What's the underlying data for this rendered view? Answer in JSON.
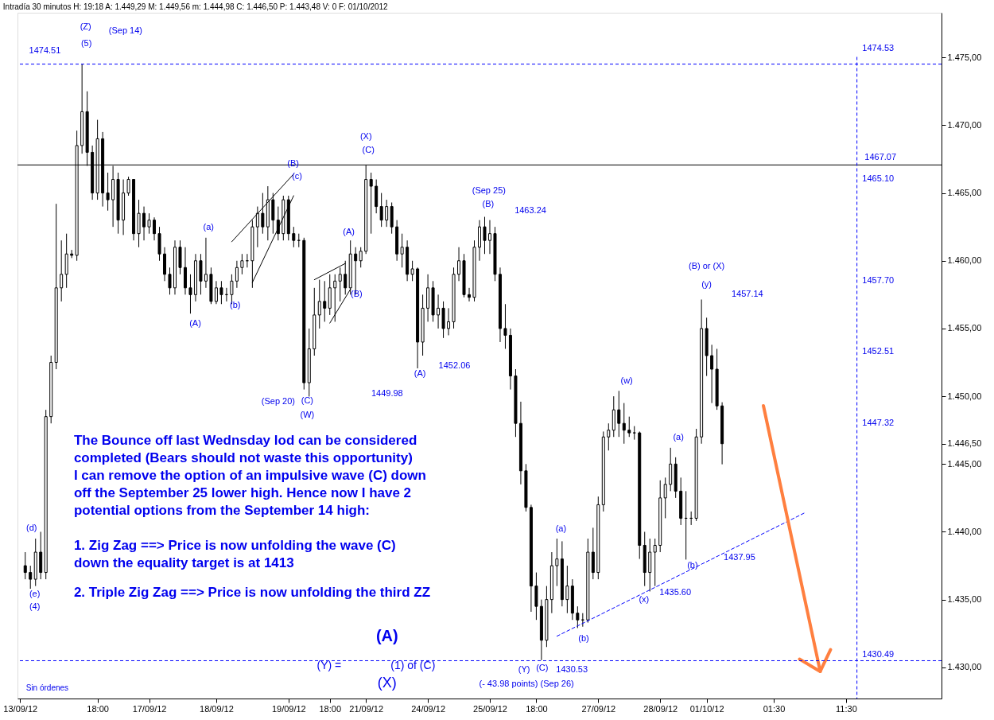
{
  "chart_data": {
    "type": "candlestick",
    "title": "Intradía 30 minutos H: 19:18 A: 1.449,29 M: 1.449,56 m: 1.444,98 C: 1.446,50 P: 1.443,48 V: 0 F: 01/10/2012",
    "categories": [
      "13/09/12",
      null,
      null,
      null,
      null,
      null,
      null,
      null,
      null,
      null,
      null,
      null,
      null,
      null,
      null,
      "18:00",
      null,
      null,
      null,
      null,
      null,
      null,
      null,
      null,
      null,
      "17/09/12",
      null,
      null,
      null,
      null,
      null,
      null,
      null,
      null,
      null,
      null,
      null,
      null,
      "18/09/12",
      null,
      null,
      null,
      null,
      null,
      null,
      null,
      null,
      null,
      null,
      null,
      null,
      null,
      "19/09/12",
      null,
      null,
      null,
      null,
      null,
      null,
      null,
      "18:00",
      null,
      null,
      null,
      null,
      null,
      null,
      "21/09/12",
      null,
      null,
      null,
      null,
      null,
      null,
      null,
      null,
      null,
      null,
      null,
      "24/09/12",
      null,
      null,
      null,
      null,
      null,
      null,
      null,
      null,
      null,
      null,
      null,
      "25/09/12",
      null,
      null,
      null,
      null,
      null,
      null,
      null,
      null,
      "18:00",
      null,
      null,
      null,
      null,
      null,
      null,
      null,
      null,
      null,
      null,
      null,
      "27/09/12",
      null,
      null,
      null,
      null,
      null,
      null,
      null,
      null,
      null,
      null,
      null,
      "28/09/12",
      null,
      null,
      null,
      null,
      null,
      null,
      null,
      null,
      "01/10/12",
      null,
      null,
      null,
      null,
      null,
      null,
      null,
      null,
      null,
      null,
      null,
      null,
      "01:30",
      null,
      null,
      null,
      null,
      null,
      null,
      null,
      null,
      null,
      null,
      null,
      null,
      null,
      "11:30",
      null,
      null,
      null,
      null,
      null,
      null,
      null,
      null,
      null,
      null,
      null,
      null,
      null,
      null,
      null,
      null,
      null,
      null
    ],
    "ohlc": [
      null,
      [
        1437.5,
        1438.5,
        1436.5,
        1437.0
      ],
      [
        1437.0,
        1437.5,
        1435.8,
        1436.5
      ],
      [
        1436.5,
        1439.5,
        1436.0,
        1438.5
      ],
      [
        1438.5,
        1440.0,
        1436.5,
        1437.0
      ],
      [
        1437.0,
        1449.0,
        1436.5,
        1448.5
      ],
      [
        1448.5,
        1453.0,
        1448.0,
        1452.5
      ],
      [
        1452.5,
        1464.2,
        1452.0,
        1458.0
      ],
      [
        1458.0,
        1461.5,
        1457.0,
        1459.0
      ],
      [
        1459.0,
        1462.0,
        1458.0,
        1460.5
      ],
      [
        1460.5,
        1460.8,
        1460.2,
        1460.4
      ],
      [
        1460.4,
        1469.6,
        1460.0,
        1468.5
      ],
      [
        1468.5,
        1474.51,
        1467.9,
        1471.0
      ],
      [
        1471.0,
        1472.5,
        1467.0,
        1468.0
      ],
      [
        1468.0,
        1468.5,
        1464.5,
        1465.0
      ],
      [
        1465.0,
        1470.4,
        1464.5,
        1469.0
      ],
      [
        1469.0,
        1469.5,
        1464.0,
        1465.0
      ],
      [
        1465.0,
        1466.5,
        1463.7,
        1464.5
      ],
      [
        1464.5,
        1467.0,
        1462.5,
        1466.0
      ],
      [
        1466.0,
        1466.5,
        1462.0,
        1463.0
      ],
      [
        1463.0,
        1466.0,
        1461.9,
        1465.0
      ],
      [
        1465.0,
        1466.2,
        1464.8,
        1466.0
      ],
      [
        1466.0,
        1466.0,
        1461.5,
        1462.0
      ],
      [
        1462.0,
        1464.5,
        1461.0,
        1463.5
      ],
      [
        1463.5,
        1464.0,
        1461.5,
        1462.5
      ],
      [
        1462.5,
        1463.5,
        1462.0,
        1463.0
      ],
      [
        1463.0,
        1463.2,
        1461.5,
        1462.0
      ],
      [
        1462.0,
        1462.5,
        1460.0,
        1460.5
      ],
      [
        1460.5,
        1461.0,
        1458.5,
        1459.0
      ],
      [
        1459.0,
        1459.5,
        1457.5,
        1458.0
      ],
      [
        1458.0,
        1461.5,
        1457.5,
        1461.0
      ],
      [
        1461.0,
        1461.5,
        1459.0,
        1459.5
      ],
      [
        1459.5,
        1461.0,
        1457.5,
        1458.0
      ],
      [
        1458.0,
        1459.0,
        1456.1,
        1457.5
      ],
      [
        1457.5,
        1460.5,
        1457.0,
        1460.0
      ],
      [
        1460.0,
        1460.5,
        1457.5,
        1458.5
      ],
      [
        1458.5,
        1461.7,
        1458.0,
        1459.0
      ],
      [
        1459.0,
        1459.5,
        1456.8,
        1457.0
      ],
      [
        1457.0,
        1458.5,
        1456.8,
        1458.0
      ],
      [
        1458.0,
        1458.5,
        1456.8,
        1457.5
      ],
      [
        1457.5,
        1458.0,
        1457.0,
        1457.5
      ],
      [
        1457.5,
        1459.0,
        1456.8,
        1458.5
      ],
      [
        1458.5,
        1460.0,
        1458.0,
        1459.5
      ],
      [
        1459.5,
        1460.5,
        1459.0,
        1460.0
      ],
      [
        1460.0,
        1460.5,
        1459.5,
        1460.0
      ],
      [
        1460.0,
        1463.0,
        1458.0,
        1462.5
      ],
      [
        1462.5,
        1464.0,
        1461.0,
        1463.5
      ],
      [
        1463.5,
        1465.0,
        1462.0,
        1462.5
      ],
      [
        1462.5,
        1465.5,
        1461.5,
        1464.5
      ],
      [
        1464.5,
        1465.0,
        1462.0,
        1463.0
      ],
      [
        1463.0,
        1464.0,
        1461.5,
        1462.0
      ],
      [
        1462.0,
        1464.8,
        1461.5,
        1464.5
      ],
      [
        1464.5,
        1464.8,
        1461.5,
        1462.0
      ],
      [
        1462.0,
        1462.5,
        1461.0,
        1461.5
      ],
      [
        1461.5,
        1462.0,
        1461.0,
        1461.5
      ],
      [
        1461.5,
        1461.7,
        1450.5,
        1451.0
      ],
      [
        1451.0,
        1455.0,
        1449.98,
        1453.5
      ],
      [
        1453.5,
        1458.0,
        1453.0,
        1456.0
      ],
      [
        1456.0,
        1458.6,
        1455.0,
        1457.0
      ],
      [
        1457.0,
        1458.5,
        1455.5,
        1456.5
      ],
      [
        1456.5,
        1459.0,
        1456.0,
        1458.0
      ],
      [
        1458.0,
        1459.0,
        1455.5,
        1458.5
      ],
      [
        1458.5,
        1459.5,
        1457.0,
        1459.0
      ],
      [
        1459.0,
        1460.0,
        1457.5,
        1458.0
      ],
      [
        1458.0,
        1461.5,
        1457.5,
        1460.5
      ],
      [
        1460.5,
        1461.0,
        1457.5,
        1460.0
      ],
      [
        1460.0,
        1461.0,
        1459.5,
        1460.7
      ],
      [
        1460.7,
        1467.07,
        1460.5,
        1466.0
      ],
      [
        1466.0,
        1466.5,
        1462.0,
        1465.5
      ],
      [
        1465.5,
        1466.0,
        1463.5,
        1464.0
      ],
      [
        1464.0,
        1465.0,
        1462.5,
        1463.0
      ],
      [
        1463.0,
        1464.5,
        1462.5,
        1464.0
      ],
      [
        1464.0,
        1464.3,
        1462.0,
        1462.5
      ],
      [
        1462.5,
        1463.0,
        1460.0,
        1460.5
      ],
      [
        1460.5,
        1462.0,
        1459.5,
        1461.0
      ],
      [
        1461.0,
        1461.5,
        1458.5,
        1459.0
      ],
      [
        1459.0,
        1460.0,
        1458.5,
        1459.4
      ],
      [
        1459.4,
        1459.5,
        1452.06,
        1454.0
      ],
      [
        1454.0,
        1457.5,
        1453.0,
        1456.5
      ],
      [
        1456.5,
        1459.0,
        1455.5,
        1458.0
      ],
      [
        1458.0,
        1458.5,
        1455.5,
        1456.0
      ],
      [
        1456.0,
        1457.5,
        1455.0,
        1456.5
      ],
      [
        1456.5,
        1457.0,
        1454.3,
        1455.0
      ],
      [
        1455.0,
        1456.5,
        1454.5,
        1455.5
      ],
      [
        1455.5,
        1459.5,
        1455.0,
        1459.0
      ],
      [
        1459.0,
        1461.0,
        1458.5,
        1460.0
      ],
      [
        1460.0,
        1460.5,
        1457.3,
        1457.5
      ],
      [
        1457.5,
        1458.0,
        1457.0,
        1457.3
      ],
      [
        1457.3,
        1461.5,
        1457.0,
        1461.0
      ],
      [
        1461.0,
        1463.0,
        1460.0,
        1462.5
      ],
      [
        1462.5,
        1463.24,
        1460.5,
        1461.5
      ],
      [
        1461.5,
        1463.0,
        1460.5,
        1462.0
      ],
      [
        1462.0,
        1462.5,
        1458.5,
        1459.0
      ],
      [
        1459.0,
        1459.5,
        1454.0,
        1455.0
      ],
      [
        1455.0,
        1456.8,
        1453.5,
        1454.5
      ],
      [
        1454.5,
        1455.0,
        1450.5,
        1451.5
      ],
      [
        1451.5,
        1452.0,
        1447.0,
        1448.0
      ],
      [
        1448.0,
        1449.6,
        1443.5,
        1444.5
      ],
      [
        1444.5,
        1445.0,
        1441.5,
        1441.8
      ],
      [
        1441.8,
        1442.0,
        1434.1,
        1436.0
      ],
      [
        1436.0,
        1437.0,
        1433.5,
        1434.5
      ],
      [
        1434.5,
        1435.0,
        1430.53,
        1432.0
      ],
      [
        1432.0,
        1436.0,
        1431.5,
        1435.0
      ],
      [
        1435.0,
        1438.5,
        1434.0,
        1437.5
      ],
      [
        1437.5,
        1439.5,
        1436.0,
        1438.0
      ],
      [
        1438.0,
        1439.3,
        1434.5,
        1435.0
      ],
      [
        1435.0,
        1437.5,
        1434.0,
        1436.0
      ],
      [
        1436.0,
        1436.5,
        1433.5,
        1434.0
      ],
      [
        1434.0,
        1434.5,
        1432.9,
        1433.5
      ],
      [
        1433.5,
        1434.0,
        1433.0,
        1433.5
      ],
      [
        1433.5,
        1439.5,
        1433.3,
        1438.5
      ],
      [
        1438.5,
        1440.3,
        1436.5,
        1437.0
      ],
      [
        1437.0,
        1442.6,
        1436.5,
        1442.0
      ],
      [
        1442.0,
        1447.4,
        1441.5,
        1447.0
      ],
      [
        1447.0,
        1448.0,
        1446.0,
        1447.5
      ],
      [
        1447.5,
        1450.0,
        1447.0,
        1449.0
      ],
      [
        1449.0,
        1450.4,
        1447.0,
        1448.0
      ],
      [
        1448.0,
        1449.5,
        1446.5,
        1447.5
      ],
      [
        1447.5,
        1448.5,
        1447.0,
        1447.3
      ],
      [
        1447.3,
        1447.8,
        1446.8,
        1447.3
      ],
      [
        1447.3,
        1447.4,
        1438.0,
        1439.0
      ],
      [
        1439.0,
        1440.0,
        1436.0,
        1437.0
      ],
      [
        1437.0,
        1439.5,
        1435.6,
        1438.5
      ],
      [
        1438.5,
        1439.5,
        1436.0,
        1439.0
      ],
      [
        1439.0,
        1443.8,
        1438.5,
        1442.5
      ],
      [
        1442.5,
        1444.0,
        1441.0,
        1443.5
      ],
      [
        1443.5,
        1446.2,
        1443.0,
        1445.0
      ],
      [
        1445.0,
        1445.5,
        1442.5,
        1443.0
      ],
      [
        1443.0,
        1444.0,
        1440.5,
        1441.0
      ],
      [
        1441.0,
        1443.0,
        1437.95,
        1441.0
      ],
      [
        1441.0,
        1441.5,
        1440.5,
        1441.0
      ],
      [
        1441.0,
        1447.6,
        1440.8,
        1447.0
      ],
      [
        1447.0,
        1457.14,
        1446.5,
        1455.0
      ],
      [
        1455.0,
        1455.8,
        1451.5,
        1453.0
      ],
      [
        1453.0,
        1453.8,
        1449.5,
        1452.0
      ],
      [
        1452.0,
        1453.5,
        1449.0,
        1449.29
      ],
      [
        1449.29,
        1449.56,
        1444.98,
        1446.5
      ],
      null,
      null,
      null,
      null,
      null,
      null,
      null,
      null,
      null,
      null,
      null,
      null,
      null,
      null,
      null,
      null,
      null,
      null,
      null,
      null,
      null,
      null,
      null,
      null,
      null,
      null,
      null,
      null,
      null,
      null,
      null,
      null,
      null,
      null,
      null,
      null,
      null,
      null,
      null,
      null,
      null,
      null
    ],
    "series": [
      {
        "type": "line",
        "color": "#0000ff",
        "line_style": "dashed",
        "values": [
          null,
          null,
          null,
          null,
          null,
          null,
          null,
          null,
          null,
          null,
          null,
          null,
          null,
          null,
          null,
          null,
          null,
          null,
          null,
          null,
          null,
          null,
          null,
          null,
          null,
          null,
          null,
          null,
          null,
          null,
          null,
          null,
          null,
          null,
          null,
          null,
          null,
          null,
          null,
          null,
          null,
          null,
          null,
          null,
          null,
          null,
          null,
          null,
          null,
          null,
          null,
          null,
          null,
          null,
          null,
          null,
          null,
          null,
          null,
          null,
          null,
          null,
          null,
          null,
          null,
          null,
          null,
          null,
          null,
          null,
          null,
          null,
          null,
          null,
          null,
          null,
          null,
          null,
          null,
          null,
          null,
          null,
          null,
          null,
          null,
          null,
          null,
          null,
          null,
          null,
          null,
          null,
          null,
          null,
          null,
          null,
          null,
          null,
          null,
          null,
          null,
          null,
          null,
          null,
          1432.3,
          null,
          null,
          null,
          null,
          null,
          null,
          null,
          null,
          null,
          null,
          null,
          null,
          null,
          null,
          null,
          null,
          null,
          null,
          null,
          null,
          null,
          null,
          null,
          null,
          null,
          null,
          null,
          null,
          null,
          null,
          null,
          null,
          null,
          null,
          null,
          null,
          null,
          null,
          null,
          null,
          null,
          null,
          null,
          null,
          null,
          null,
          null,
          1441.4,
          null,
          null,
          null,
          null,
          null,
          null,
          null,
          null,
          null,
          null,
          null,
          null,
          null,
          null,
          null,
          null,
          null,
          null,
          null,
          null,
          null,
          null,
          null,
          null,
          null,
          null
        ]
      },
      {
        "type": "line",
        "color": "#000000",
        "line_style": "solid",
        "values": [
          null,
          null,
          null,
          null,
          null,
          null,
          null,
          null,
          null,
          null,
          null,
          null,
          null,
          null,
          null,
          null,
          null,
          null,
          null,
          null,
          null,
          null,
          null,
          null,
          null,
          null,
          null,
          null,
          null,
          null,
          null,
          null,
          null,
          null,
          null,
          null,
          null,
          null,
          null,
          null,
          null,
          1461.4,
          null,
          null,
          null,
          null,
          null,
          null,
          null,
          null,
          null,
          null,
          null,
          1466.4,
          null,
          null,
          null,
          null,
          null,
          null,
          null,
          null,
          null,
          null,
          null,
          null,
          null,
          null,
          null,
          null,
          null,
          null,
          null,
          null,
          null,
          null,
          null,
          null,
          null,
          null,
          null,
          null,
          null,
          null,
          null,
          null,
          null,
          null,
          null,
          null,
          null,
          null,
          null,
          null,
          null,
          null,
          null,
          null,
          null,
          null,
          null,
          null,
          null,
          null,
          null,
          null,
          null,
          null,
          null,
          null,
          null,
          null,
          null,
          null,
          null,
          null,
          null,
          null,
          null,
          null,
          null,
          null,
          null,
          null,
          null,
          null,
          null,
          null,
          null,
          null,
          null,
          null,
          null,
          null,
          null,
          null,
          null,
          null,
          null,
          null,
          null,
          null,
          null,
          null,
          null,
          null,
          null,
          null,
          null,
          null,
          null,
          null,
          null,
          null,
          null,
          null,
          null,
          null,
          null,
          null,
          null,
          null,
          null,
          null,
          null,
          null,
          null,
          null,
          null,
          null,
          null,
          null,
          null,
          null,
          null,
          null,
          null,
          null,
          null
        ]
      },
      {
        "type": "line",
        "color": "#000000",
        "line_style": "solid",
        "values": [
          null,
          null,
          null,
          null,
          null,
          null,
          null,
          null,
          null,
          null,
          null,
          null,
          null,
          null,
          null,
          null,
          null,
          null,
          null,
          null,
          null,
          null,
          null,
          null,
          null,
          null,
          null,
          null,
          null,
          null,
          null,
          null,
          null,
          null,
          null,
          null,
          null,
          null,
          null,
          null,
          null,
          null,
          null,
          null,
          null,
          1458.4,
          null,
          null,
          null,
          null,
          null,
          null,
          null,
          1464.8,
          null,
          null,
          null,
          null,
          null,
          null,
          null,
          null,
          null,
          null,
          null,
          null,
          null,
          null,
          null,
          null,
          null,
          null,
          null,
          null,
          null,
          null,
          null,
          null,
          null,
          null,
          null,
          null,
          null,
          null,
          null,
          null,
          null,
          null,
          null,
          null,
          null,
          null,
          null,
          null,
          null,
          null,
          null,
          null,
          null,
          null,
          null,
          null,
          null,
          null,
          null,
          null,
          null,
          null,
          null,
          null,
          null,
          null,
          null,
          null,
          null,
          null,
          null,
          null,
          null,
          null,
          null,
          null,
          null,
          null,
          null,
          null,
          null,
          null,
          null,
          null,
          null,
          null,
          null,
          null,
          null,
          null,
          null,
          null,
          null,
          null,
          null,
          null,
          null,
          null,
          null,
          null,
          null,
          null,
          null,
          null,
          null,
          null,
          null,
          null,
          null,
          null,
          null,
          null,
          null,
          null,
          null,
          null,
          null,
          null,
          null,
          null,
          null,
          null,
          null,
          null,
          null,
          null,
          null,
          null,
          null,
          null,
          null,
          null,
          null
        ]
      },
      {
        "type": "line",
        "color": "#000000",
        "line_style": "solid",
        "values": [
          null,
          null,
          null,
          null,
          null,
          null,
          null,
          null,
          null,
          null,
          null,
          null,
          null,
          null,
          null,
          null,
          null,
          null,
          null,
          null,
          null,
          null,
          null,
          null,
          null,
          null,
          null,
          null,
          null,
          null,
          null,
          null,
          null,
          null,
          null,
          null,
          null,
          null,
          null,
          null,
          null,
          null,
          null,
          null,
          null,
          null,
          null,
          null,
          null,
          null,
          null,
          null,
          null,
          null,
          null,
          null,
          null,
          1458.6,
          null,
          null,
          null,
          null,
          null,
          1459.8,
          null,
          null,
          null,
          null,
          null,
          null,
          null,
          null,
          null,
          null,
          null,
          null,
          null,
          null,
          null,
          null,
          null,
          null,
          null,
          null,
          null,
          null,
          null,
          null,
          null,
          null,
          null,
          null,
          null,
          null,
          null,
          null,
          null,
          null,
          null,
          null,
          null,
          null,
          null,
          null,
          null,
          null,
          null,
          null,
          null,
          null,
          null,
          null,
          null,
          null,
          null,
          null,
          null,
          null,
          null,
          null,
          null,
          null,
          null,
          null,
          null,
          null,
          null,
          null,
          null,
          null,
          null,
          null,
          null,
          null,
          null,
          null,
          null,
          null,
          null,
          null,
          null,
          null,
          null,
          null,
          null,
          null,
          null,
          null,
          null,
          null,
          null,
          null,
          null,
          null,
          null,
          null,
          null,
          null,
          null,
          null,
          null,
          null,
          null,
          null,
          null,
          null,
          null,
          null,
          null,
          null,
          null,
          null,
          null,
          null,
          null,
          null,
          null,
          null,
          null
        ]
      },
      {
        "type": "line",
        "color": "#000000",
        "line_style": "solid",
        "values": [
          null,
          null,
          null,
          null,
          null,
          null,
          null,
          null,
          null,
          null,
          null,
          null,
          null,
          null,
          null,
          null,
          null,
          null,
          null,
          null,
          null,
          null,
          null,
          null,
          null,
          null,
          null,
          null,
          null,
          null,
          null,
          null,
          null,
          null,
          null,
          null,
          null,
          null,
          null,
          null,
          null,
          null,
          null,
          null,
          null,
          null,
          null,
          null,
          null,
          null,
          null,
          null,
          null,
          null,
          null,
          null,
          null,
          null,
          null,
          null,
          1455.4,
          null,
          null,
          null,
          1457.9,
          null,
          null,
          null,
          null,
          null,
          null,
          null,
          null,
          null,
          null,
          null,
          null,
          null,
          null,
          null,
          null,
          null,
          null,
          null,
          null,
          null,
          null,
          null,
          null,
          null,
          null,
          null,
          null,
          null,
          null,
          null,
          null,
          null,
          null,
          null,
          null,
          null,
          null,
          null,
          null,
          null,
          null,
          null,
          null,
          null,
          null,
          null,
          null,
          null,
          null,
          null,
          null,
          null,
          null,
          null,
          null,
          null,
          null,
          null,
          null,
          null,
          null,
          null,
          null,
          null,
          null,
          null,
          null,
          null,
          null,
          null,
          null,
          null,
          null,
          null,
          null,
          null,
          null,
          null,
          null,
          null,
          null,
          null,
          null,
          null,
          null,
          null,
          null,
          null,
          null,
          null,
          null,
          null,
          null,
          null,
          null,
          null,
          null,
          null,
          null,
          null,
          null,
          null,
          null,
          null,
          null,
          null,
          null,
          null,
          null,
          null,
          null,
          null,
          null
        ]
      },
      {
        "type": "line",
        "color": "#ff7f3f",
        "line_style": "solid",
        "values": [
          null,
          null,
          null,
          null,
          null,
          null,
          null,
          null,
          null,
          null,
          null,
          null,
          null,
          null,
          null,
          null,
          null,
          null,
          null,
          null,
          null,
          null,
          null,
          null,
          null,
          null,
          null,
          null,
          null,
          null,
          null,
          null,
          null,
          null,
          null,
          null,
          null,
          null,
          null,
          null,
          null,
          null,
          null,
          null,
          null,
          null,
          null,
          null,
          null,
          null,
          null,
          null,
          null,
          null,
          null,
          null,
          null,
          null,
          null,
          null,
          null,
          null,
          null,
          null,
          null,
          null,
          null,
          null,
          null,
          null,
          null,
          null,
          null,
          null,
          null,
          null,
          null,
          null,
          null,
          null,
          null,
          null,
          null,
          null,
          null,
          null,
          null,
          null,
          null,
          null,
          null,
          null,
          null,
          null,
          null,
          null,
          null,
          null,
          null,
          null,
          null,
          null,
          null,
          null,
          null,
          null,
          null,
          null,
          null,
          null,
          null,
          null,
          null,
          null,
          null,
          null,
          null,
          null,
          null,
          null,
          null,
          null,
          null,
          null,
          null,
          null,
          null,
          null,
          null,
          null,
          null,
          null,
          null,
          null,
          null,
          null,
          null,
          null,
          null,
          null,
          null,
          null,
          null,
          null,
          1449.3,
          null,
          null,
          null,
          null,
          null,
          null,
          null,
          null,
          null,
          null,
          1429.7,
          null,
          null,
          null,
          null,
          null,
          null,
          null,
          null,
          null,
          null,
          null,
          null,
          null,
          null,
          null,
          null,
          null,
          null,
          null,
          null,
          null,
          null,
          null
        ]
      },
      {
        "type": "line",
        "color": "#ff7f3f",
        "line_style": "solid",
        "values": [
          null,
          null,
          null,
          null,
          null,
          null,
          null,
          null,
          null,
          null,
          null,
          null,
          null,
          null,
          null,
          null,
          null,
          null,
          null,
          null,
          null,
          null,
          null,
          null,
          null,
          null,
          null,
          null,
          null,
          null,
          null,
          null,
          null,
          null,
          null,
          null,
          null,
          null,
          null,
          null,
          null,
          null,
          null,
          null,
          null,
          null,
          null,
          null,
          null,
          null,
          null,
          null,
          null,
          null,
          null,
          null,
          null,
          null,
          null,
          null,
          null,
          null,
          null,
          null,
          null,
          null,
          null,
          null,
          null,
          null,
          null,
          null,
          null,
          null,
          null,
          null,
          null,
          null,
          null,
          null,
          null,
          null,
          null,
          null,
          null,
          null,
          null,
          null,
          null,
          null,
          null,
          null,
          null,
          null,
          null,
          null,
          null,
          null,
          null,
          null,
          null,
          null,
          null,
          null,
          null,
          null,
          null,
          null,
          null,
          null,
          null,
          null,
          null,
          null,
          null,
          null,
          null,
          null,
          null,
          null,
          null,
          null,
          null,
          null,
          null,
          null,
          null,
          null,
          null,
          null,
          null,
          null,
          null,
          null,
          null,
          null,
          null,
          null,
          null,
          null,
          null,
          null,
          null,
          null,
          null,
          null,
          null,
          null,
          null,
          null,
          null,
          1430.6,
          null,
          null,
          null,
          1429.7,
          null,
          1431.3,
          null,
          null,
          null,
          null,
          null,
          null,
          null,
          null,
          null,
          null,
          null,
          null,
          null,
          null,
          null,
          null,
          null,
          null,
          null,
          null,
          null
        ]
      }
    ],
    "ylim": [
      1427.7,
      1478.3
    ],
    "yticks": [
      {
        "value": 1430,
        "label": "1.430,00"
      },
      {
        "value": 1435,
        "label": "1.435,00"
      },
      {
        "value": 1440,
        "label": "1.440,00"
      },
      {
        "value": 1445,
        "label": "1.445,00"
      },
      {
        "value": 1446.5,
        "label": "1.446,50"
      },
      {
        "value": 1450,
        "label": "1.450,00"
      },
      {
        "value": 1455,
        "label": "1.455,00"
      },
      {
        "value": 1460,
        "label": "1.460,00"
      },
      {
        "value": 1465,
        "label": "1.465,00"
      },
      {
        "value": 1470,
        "label": "1.470,00"
      },
      {
        "value": 1475,
        "label": "1.475,00"
      }
    ],
    "grid": false,
    "ref_lines": [
      {
        "axis": "y",
        "value": 1474.51,
        "color": "#0000ff",
        "line_style": "dashed"
      },
      {
        "axis": "y",
        "value": 1467.07,
        "color": "#000000",
        "line_style": "solid"
      },
      {
        "axis": "y",
        "value": 1430.49,
        "color": "#0000ff",
        "line_style": "dashed"
      }
    ],
    "annotations": [
      "(Z)",
      "(Sep 14)",
      "(5)",
      "1474.51",
      "(d)",
      "(e)",
      "(4)",
      "(A)",
      "(a)",
      "(b)",
      "(B)",
      "(c)",
      "(Sep 20)",
      "(C)",
      "(W)",
      "(A)",
      "(B)",
      "(X)",
      "(C)",
      "1467.07",
      "(Sep 25)",
      "(B)",
      "1463.24",
      "(A)",
      "1452.06",
      "1449.98",
      "(Y)",
      "(C)",
      "1430.53",
      "(- 43.98 points) (Sep 26)",
      "(a)",
      "(b)",
      "(w)",
      "(x)",
      "1435.60",
      "(a)",
      "(b)",
      "1437.95",
      "(y)",
      "1457.14",
      "(B) or (X)",
      "1474.53",
      "1465.10",
      "1457.70",
      "1452.51",
      "1447.32",
      "1430.49",
      "The Bounce off last Wednsday lod can be considered",
      "completed (Bears should not waste this opportunity)",
      "I can remove the option of an impulsive wave (C) down",
      "off the September 25 lower high. Hence now I have  2",
      "potential options from the September 14 high:",
      "1.  Zig Zag ==> Price is now unfolding the wave (C)",
      "down the equality target is at 1413",
      "2. Triple Zig Zag ==> Price is now unfolding the third ZZ",
      "(Y) =",
      "(A)",
      "(1) of (C)",
      "(X)",
      "Sin órdenes"
    ]
  }
}
